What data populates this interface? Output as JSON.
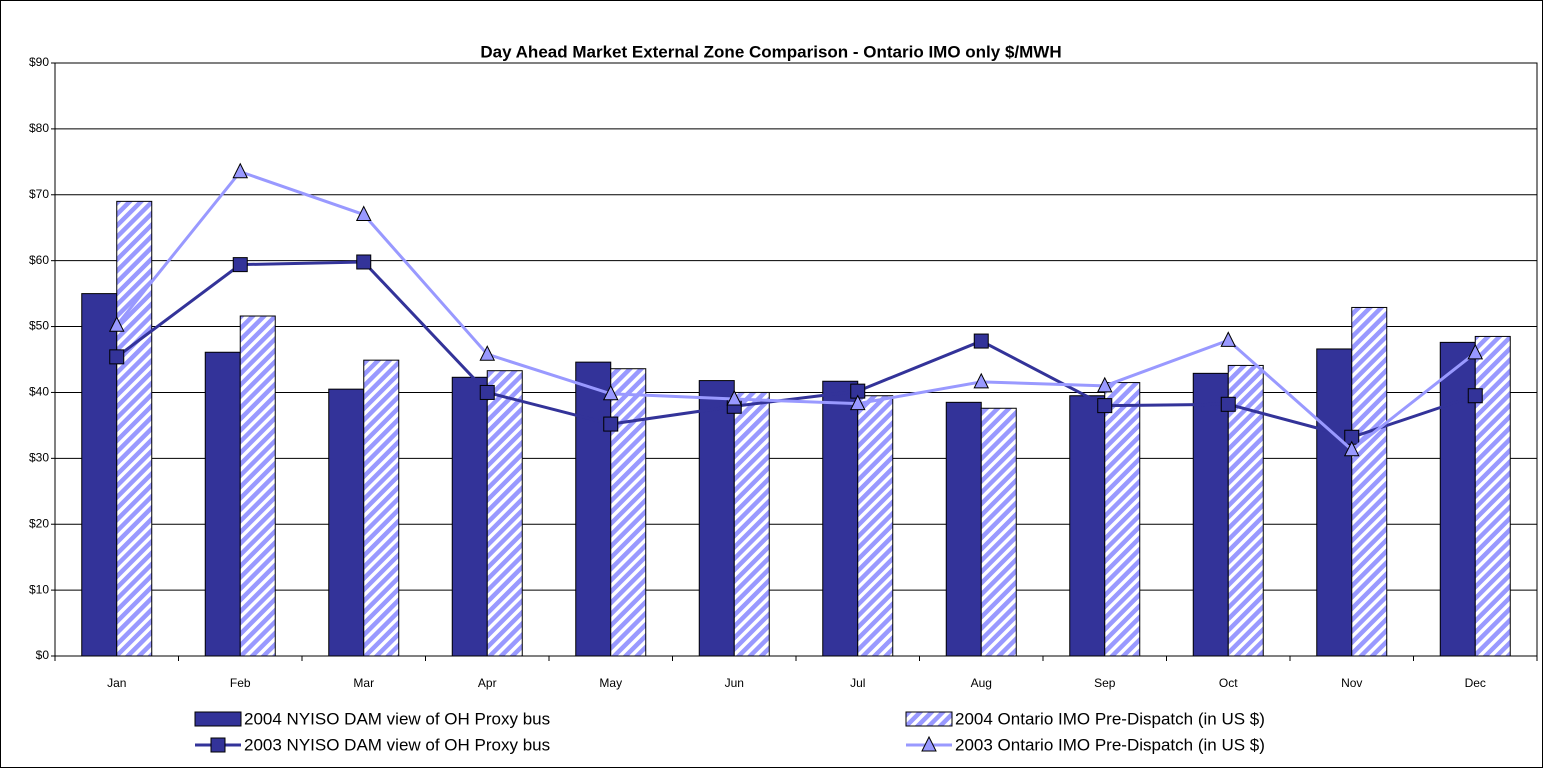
{
  "chart_data": {
    "type": "bar",
    "title": "Day Ahead Market External Zone Comparison - Ontario IMO only $/MWH",
    "categories": [
      "Jan",
      "Feb",
      "Mar",
      "Apr",
      "May",
      "Jun",
      "Jul",
      "Aug",
      "Sep",
      "Oct",
      "Nov",
      "Dec"
    ],
    "series": [
      {
        "name": "2004 NYISO DAM view of OH Proxy bus",
        "type": "bar",
        "color": "#333399",
        "pattern": "solid",
        "values": [
          55,
          46.1,
          40.5,
          42.3,
          44.6,
          41.8,
          41.7,
          38.5,
          39.5,
          42.9,
          46.6,
          47.6
        ]
      },
      {
        "name": "2004 Ontario IMO Pre-Dispatch (in US $)",
        "type": "bar",
        "color": "#9999ff",
        "pattern": "hatch",
        "values": [
          69,
          51.6,
          44.9,
          43.3,
          43.6,
          40,
          39.5,
          37.6,
          41.5,
          44.1,
          52.9,
          48.5
        ]
      },
      {
        "name": "2003 NYISO DAM view of OH Proxy bus",
        "type": "line",
        "color": "#333399",
        "marker": "square",
        "values": [
          45.4,
          59.4,
          59.8,
          40,
          35.2,
          37.9,
          40.2,
          47.8,
          38,
          38.2,
          33.2,
          39.5
        ]
      },
      {
        "name": "2003 Ontario IMO Pre-Dispatch (in US $)",
        "type": "line",
        "color": "#9999ff",
        "marker": "triangle",
        "values": [
          50.2,
          73.5,
          67,
          45.8,
          39.8,
          39,
          38.3,
          41.6,
          41,
          47.9,
          31.3,
          46
        ]
      }
    ],
    "ylim": [
      0,
      90
    ],
    "yticks": [
      {
        "value": 0,
        "label": "$0"
      },
      {
        "value": 10,
        "label": "$10"
      },
      {
        "value": 20,
        "label": "$20"
      },
      {
        "value": 30,
        "label": "$30"
      },
      {
        "value": 40,
        "label": "$40"
      },
      {
        "value": 50,
        "label": "$50"
      },
      {
        "value": 60,
        "label": "$60"
      },
      {
        "value": 70,
        "label": "$70"
      },
      {
        "value": 80,
        "label": "$80"
      },
      {
        "value": 90,
        "label": "$90"
      }
    ],
    "grid": true,
    "legend": "bottom"
  }
}
